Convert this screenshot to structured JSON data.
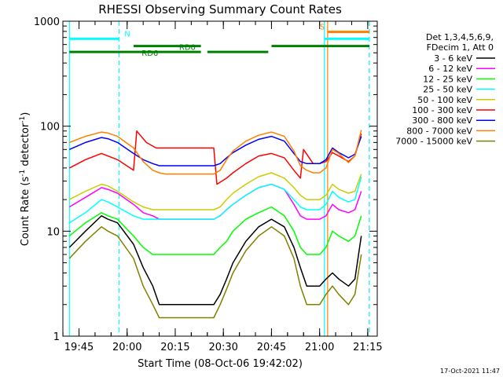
{
  "chart_data": {
    "type": "line",
    "title": "RHESSI Observing Summary Count Rates",
    "xlabel": "Start Time (08-Oct-06 19:42:02)",
    "ylabel_main": "Count Rate (s",
    "ylabel_exp1": "-1",
    "ylabel_mid": " detector",
    "ylabel_exp2": "-1",
    "ylabel_end": ")",
    "y_scale": "log",
    "ylim": [
      1,
      1000
    ],
    "xlim_minutes": [
      -2.03,
      95.97
    ],
    "x_ticks": [
      {
        "min": 3,
        "label": "19:45"
      },
      {
        "min": 18,
        "label": "20:00"
      },
      {
        "min": 33,
        "label": "20:15"
      },
      {
        "min": 48,
        "label": "20:30"
      },
      {
        "min": 63,
        "label": "20:45"
      },
      {
        "min": 78,
        "label": "21:00"
      },
      {
        "min": 93,
        "label": "21:15"
      }
    ],
    "y_ticks": [
      {
        "value": 1,
        "label": "1"
      },
      {
        "value": 10,
        "label": "10"
      },
      {
        "value": 100,
        "label": "100"
      },
      {
        "value": 1000,
        "label": "1000"
      }
    ],
    "legend_header": [
      "Det 1,3,4,5,6,9,",
      "FDecim 1, Att 0"
    ],
    "legend_placement": "right",
    "series": [
      {
        "name": "3 - 6 keV",
        "color": "#000000",
        "x": [
          0,
          5,
          10,
          12,
          15,
          20,
          23,
          26,
          28,
          30,
          33,
          36,
          40,
          43,
          45,
          47,
          49,
          51,
          55,
          59,
          63,
          67,
          70,
          72,
          74,
          76,
          78,
          80,
          82,
          84,
          87,
          89,
          91
        ],
        "values": [
          7,
          10,
          14,
          13,
          12,
          7.5,
          4.5,
          3,
          2,
          2,
          2,
          2,
          2,
          2,
          2,
          2.5,
          3.5,
          5,
          8,
          11,
          13,
          11,
          7,
          4.5,
          3,
          3,
          3,
          3.5,
          4,
          3.5,
          3,
          3.5,
          9
        ]
      },
      {
        "name": "6 - 12 keV",
        "color": "#ff00ff",
        "x": [
          0,
          5,
          10,
          12,
          15,
          20,
          23,
          26,
          28,
          30,
          33,
          36,
          40,
          43,
          45,
          47,
          49,
          51,
          55,
          59,
          63,
          67,
          70,
          72,
          74,
          76,
          78,
          80,
          82,
          84,
          87,
          89,
          91
        ],
        "values": [
          17,
          21,
          26,
          25,
          23,
          18,
          15,
          14,
          13,
          13,
          13,
          13,
          13,
          13,
          13,
          14,
          16,
          18,
          22,
          26,
          28,
          25,
          18,
          14,
          13,
          13,
          13,
          14,
          18,
          16,
          15,
          16,
          24
        ]
      },
      {
        "name": "12 - 25 keV",
        "color": "#00ff00",
        "x": [
          0,
          5,
          10,
          12,
          15,
          20,
          23,
          26,
          28,
          30,
          33,
          36,
          40,
          43,
          45,
          47,
          49,
          51,
          55,
          59,
          63,
          67,
          70,
          72,
          74,
          76,
          78,
          80,
          82,
          84,
          87,
          89,
          91
        ],
        "values": [
          9,
          12,
          15,
          14,
          13,
          9,
          7,
          6,
          6,
          6,
          6,
          6,
          6,
          6,
          6,
          7,
          8,
          10,
          13,
          15,
          17,
          14,
          10,
          7,
          6,
          6,
          6,
          7,
          10,
          9,
          8,
          9,
          14
        ]
      },
      {
        "name": "25 - 50 keV",
        "color": "#00ffff",
        "x": [
          0,
          5,
          10,
          12,
          15,
          20,
          23,
          26,
          28,
          30,
          33,
          36,
          40,
          43,
          45,
          47,
          49,
          51,
          55,
          59,
          63,
          67,
          70,
          72,
          74,
          76,
          78,
          80,
          82,
          84,
          87,
          89,
          91
        ],
        "values": [
          12,
          15,
          20,
          19,
          17,
          14,
          13,
          13,
          13,
          13,
          13,
          13,
          13,
          13,
          13,
          14,
          16,
          18,
          22,
          26,
          28,
          25,
          20,
          17,
          16,
          16,
          16,
          18,
          24,
          21,
          19,
          20,
          33
        ]
      },
      {
        "name": "50 - 100 keV",
        "color": "#cccc00",
        "x": [
          0,
          5,
          10,
          12,
          15,
          20,
          23,
          26,
          28,
          30,
          33,
          36,
          40,
          43,
          45,
          47,
          49,
          51,
          55,
          59,
          63,
          67,
          70,
          72,
          74,
          76,
          78,
          80,
          82,
          84,
          87,
          89,
          91
        ],
        "values": [
          20,
          24,
          28,
          27,
          24,
          19,
          17,
          16,
          16,
          16,
          16,
          16,
          16,
          16,
          16,
          17,
          20,
          23,
          28,
          33,
          36,
          32,
          26,
          22,
          20,
          20,
          20,
          22,
          28,
          25,
          23,
          24,
          35
        ]
      },
      {
        "name": "100 - 300 keV",
        "color": "#ff0000",
        "x": [
          0,
          5,
          10,
          12,
          15,
          20,
          21,
          24,
          27,
          30,
          33,
          36,
          40,
          43,
          45,
          46,
          49,
          51,
          55,
          59,
          63,
          67,
          70,
          72,
          73,
          76,
          78,
          80,
          82,
          84,
          87,
          89,
          91
        ],
        "values": [
          40,
          48,
          55,
          52,
          48,
          38,
          90,
          70,
          62,
          62,
          62,
          62,
          62,
          62,
          62,
          28,
          32,
          36,
          44,
          52,
          55,
          50,
          38,
          32,
          60,
          44,
          44,
          46,
          56,
          52,
          46,
          52,
          85
        ]
      },
      {
        "name": "300 - 800 keV",
        "color": "#0000ff",
        "x": [
          0,
          5,
          10,
          12,
          15,
          20,
          23,
          26,
          28,
          30,
          33,
          36,
          40,
          43,
          45,
          47,
          49,
          51,
          55,
          59,
          63,
          67,
          70,
          72,
          74,
          76,
          78,
          80,
          82,
          84,
          87,
          89,
          91
        ],
        "values": [
          60,
          70,
          78,
          76,
          70,
          55,
          48,
          44,
          42,
          42,
          42,
          42,
          42,
          42,
          42,
          44,
          50,
          56,
          66,
          75,
          80,
          72,
          55,
          46,
          44,
          44,
          44,
          48,
          62,
          56,
          50,
          54,
          80
        ]
      },
      {
        "name": "800 - 7000 keV",
        "color": "#ff8000",
        "x": [
          0,
          5,
          10,
          12,
          15,
          20,
          23,
          26,
          28,
          30,
          33,
          36,
          40,
          43,
          45,
          47,
          49,
          51,
          55,
          59,
          63,
          67,
          70,
          72,
          74,
          76,
          78,
          80,
          82,
          84,
          87,
          89,
          91
        ],
        "values": [
          70,
          80,
          88,
          86,
          80,
          62,
          46,
          38,
          36,
          35,
          35,
          35,
          35,
          35,
          35,
          38,
          48,
          58,
          72,
          82,
          88,
          80,
          58,
          42,
          38,
          36,
          36,
          40,
          60,
          55,
          45,
          52,
          92
        ]
      },
      {
        "name": "7000 - 15000 keV",
        "color": "#808000",
        "x": [
          0,
          5,
          10,
          12,
          15,
          20,
          23,
          26,
          28,
          30,
          33,
          36,
          40,
          43,
          45,
          47,
          49,
          51,
          55,
          59,
          63,
          67,
          70,
          72,
          74,
          76,
          78,
          80,
          82,
          84,
          87,
          89,
          91
        ],
        "values": [
          5.5,
          8,
          11,
          10,
          9,
          5.5,
          3,
          2,
          1.5,
          1.5,
          1.5,
          1.5,
          1.5,
          1.5,
          1.5,
          2,
          2.8,
          4,
          6.5,
          9,
          11,
          9,
          5.5,
          3,
          2,
          2,
          2,
          2.5,
          3,
          2.5,
          2,
          2.5,
          6
        ]
      }
    ],
    "vertical_lines": [
      {
        "min": 0,
        "color": "#00ffff",
        "style": "solid"
      },
      {
        "min": 15.5,
        "color": "#00ffff",
        "style": "dashed"
      },
      {
        "min": 79.5,
        "color": "#00ffff",
        "style": "solid"
      },
      {
        "min": 80.5,
        "color": "#ff8000",
        "style": "solid"
      },
      {
        "min": 93.5,
        "color": "#ff8000",
        "style": "dashed"
      },
      {
        "min": 93.5,
        "color": "#00ffff",
        "style": "dashed"
      }
    ],
    "flag_bars": [
      {
        "label": "N",
        "color": "#00ffff",
        "y_value": 680,
        "segments": [
          [
            0,
            15.5
          ],
          [
            79.5,
            93.5
          ]
        ]
      },
      {
        "label": "RD0",
        "color": "#008000",
        "y_value": 580,
        "segments": [
          [
            20,
            41
          ],
          [
            63,
            93.5
          ]
        ]
      },
      {
        "label": "RD6",
        "color": "#008000",
        "y_value": 510,
        "segments": [
          [
            0,
            41
          ],
          [
            43,
            62
          ]
        ]
      },
      {
        "label": "S",
        "color": "#ff8000",
        "y_value": 790,
        "segments": [
          [
            80.5,
            93.5
          ]
        ]
      }
    ]
  },
  "footer": {
    "timestamp": "17-Oct-2021 11:47"
  }
}
